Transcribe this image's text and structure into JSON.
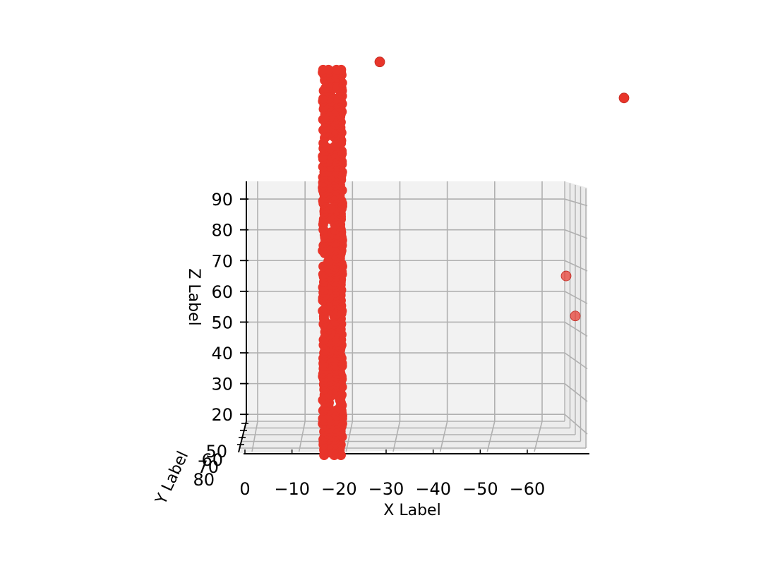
{
  "chart_data": {
    "type": "scatter",
    "projection": "3d",
    "view": "x-axis horizontal, z-axis vertical, y-axis receding to the lower left",
    "xlabel": "X Label",
    "ylabel": "Y Label",
    "zlabel": "Z Label",
    "xlim": [
      0,
      -67
    ],
    "zlim": [
      15,
      93
    ],
    "x_ticks": [
      "0",
      "−10",
      "−20",
      "−30",
      "−40",
      "−50",
      "−60"
    ],
    "x_tick_values": [
      0,
      -10,
      -20,
      -30,
      -40,
      -50,
      -60
    ],
    "z_ticks": [
      "20",
      "30",
      "40",
      "50",
      "60",
      "70",
      "80",
      "90"
    ],
    "z_tick_values": [
      20,
      30,
      40,
      50,
      60,
      70,
      80,
      90
    ],
    "y_ticks": [
      "50",
      "60",
      "70",
      "80"
    ],
    "grid": true,
    "pane_color": "#f2f2f2",
    "marker_color": "#e8352a",
    "column_x": [
      -20.5,
      -22,
      -23.5,
      -25
    ],
    "column_z_min": 14,
    "column_z_max": 132,
    "outliers": [
      {
        "x": -28,
        "z": 134
      },
      {
        "x": -65,
        "z": 123
      },
      {
        "x": -63.5,
        "z": 65
      },
      {
        "x": -65.5,
        "z": 52
      }
    ]
  }
}
